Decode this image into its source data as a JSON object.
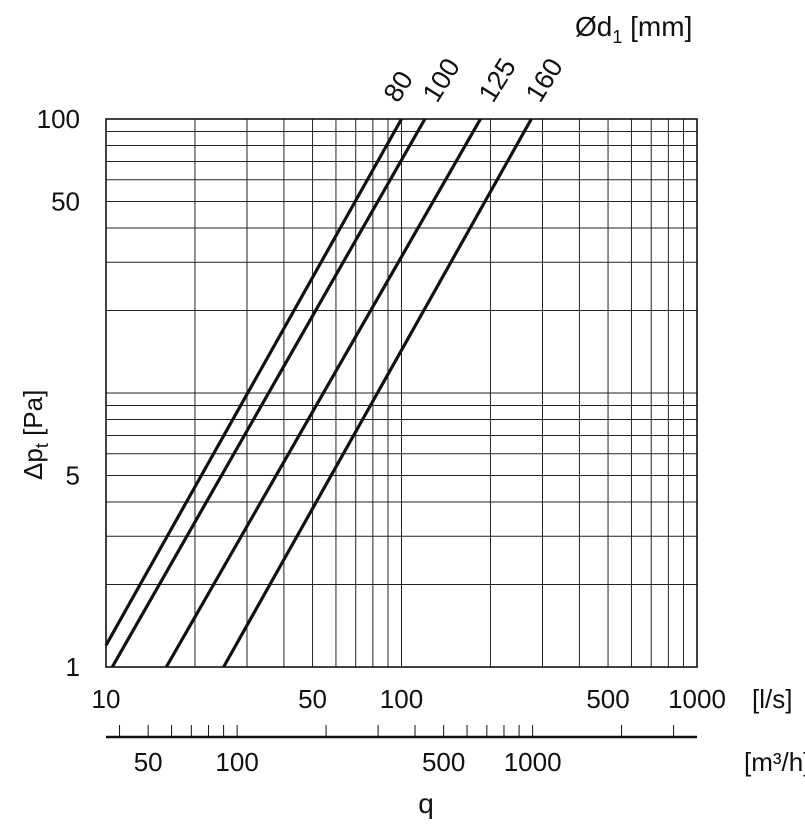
{
  "chart_data": {
    "type": "line",
    "scale": "log-log",
    "grid": true,
    "xlabel": "q",
    "x_unit": "[l/s]",
    "x2_unit": "[m³/h]",
    "ylabel": "Δpt [Pa]",
    "ylabel_main": "Δp",
    "ylabel_sub": "t",
    "ylabel_unit": " [Pa]",
    "series_title": "Ød1 [mm]",
    "series_title_main": "Ød",
    "series_title_sub": "1",
    "series_title_unit": " [mm]",
    "xlim": [
      10,
      1000
    ],
    "ylim": [
      1,
      100
    ],
    "x_ticks": [
      10,
      50,
      100,
      500,
      1000
    ],
    "x_tick_labels": [
      "10",
      "50",
      "100",
      "500",
      "1000"
    ],
    "x2_ticks": [
      50,
      100,
      500,
      1000
    ],
    "x2_tick_labels": [
      "50",
      "100",
      "500",
      "1000"
    ],
    "y_ticks": [
      1,
      5,
      50,
      100
    ],
    "y_tick_labels": [
      "1",
      "5",
      "50",
      "100"
    ],
    "series": [
      {
        "name": "80",
        "x": [
          10,
          100
        ],
        "y": [
          1.2,
          100
        ]
      },
      {
        "name": "100",
        "x": [
          10.5,
          120
        ],
        "y": [
          1,
          100
        ]
      },
      {
        "name": "125",
        "x": [
          16,
          185
        ],
        "y": [
          1,
          100
        ]
      },
      {
        "name": "160",
        "x": [
          25,
          275
        ],
        "y": [
          1,
          100
        ]
      }
    ]
  }
}
